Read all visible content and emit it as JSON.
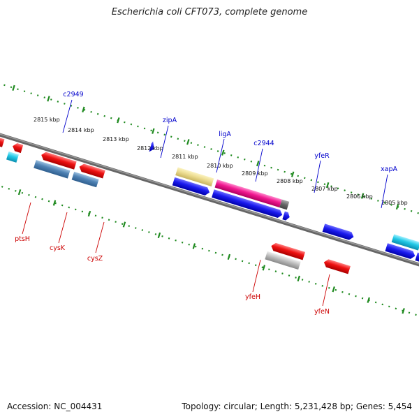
{
  "title": "Escherichia coli CFT073, complete genome",
  "footer": {
    "accession": "Accession: NC_004431",
    "stats": "Topology: circular; Length: 5,231,428 bp; Genes: 5,454"
  },
  "colors": {
    "backbone": "#888888",
    "dotted_track": "#1f8a1f",
    "label_plus": "#0000cc",
    "label_minus": "#cc0000"
  },
  "ticks": [
    {
      "label": "2815 kbp"
    },
    {
      "label": "2814 kbp"
    },
    {
      "label": "2813 kbp"
    },
    {
      "label": "2812 kbp"
    },
    {
      "label": "2811 kbp"
    },
    {
      "label": "2810 kbp"
    },
    {
      "label": "2809 kbp"
    },
    {
      "label": "2808 kbp"
    },
    {
      "label": "2807 kbp"
    },
    {
      "label": "2806 kbp"
    },
    {
      "label": "2805 kbp"
    }
  ],
  "gene_labels_top": [
    {
      "name": "c2949"
    },
    {
      "name": "zipA"
    },
    {
      "name": "ligA"
    },
    {
      "name": "c2944"
    },
    {
      "name": "yfeR"
    },
    {
      "name": "xapA"
    }
  ],
  "gene_labels_bottom": [
    {
      "name": "ptsH"
    },
    {
      "name": "cysK"
    },
    {
      "name": "cysZ"
    },
    {
      "name": "yfeH"
    },
    {
      "name": "yfeN"
    }
  ]
}
